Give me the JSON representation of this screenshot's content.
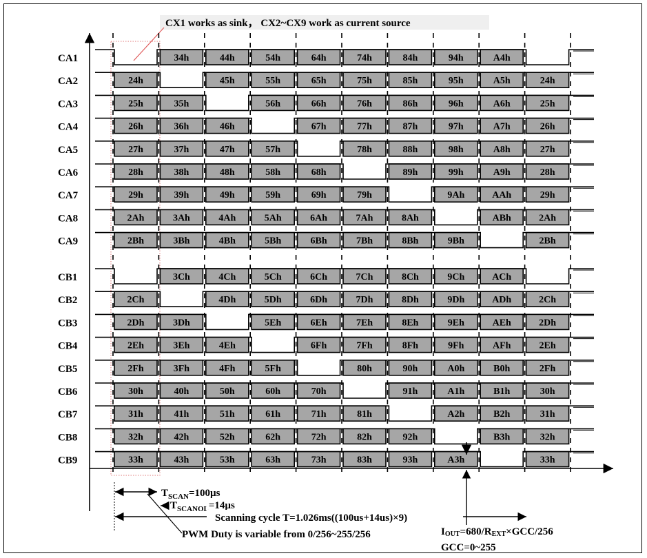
{
  "title": "CX1 works as sink， CX2~CX9 work as current source",
  "rows": [
    {
      "label": "CA1",
      "cells": [
        null,
        "34h",
        "44h",
        "54h",
        "64h",
        "74h",
        "84h",
        "94h",
        "A4h",
        null
      ]
    },
    {
      "label": "CA2",
      "cells": [
        "24h",
        null,
        "45h",
        "55h",
        "65h",
        "75h",
        "85h",
        "95h",
        "A5h",
        "24h"
      ]
    },
    {
      "label": "CA3",
      "cells": [
        "25h",
        "35h",
        null,
        "56h",
        "66h",
        "76h",
        "86h",
        "96h",
        "A6h",
        "25h"
      ]
    },
    {
      "label": "CA4",
      "cells": [
        "26h",
        "36h",
        "46h",
        null,
        "67h",
        "77h",
        "87h",
        "97h",
        "A7h",
        "26h"
      ]
    },
    {
      "label": "CA5",
      "cells": [
        "27h",
        "37h",
        "47h",
        "57h",
        null,
        "78h",
        "88h",
        "98h",
        "A8h",
        "27h"
      ]
    },
    {
      "label": "CA6",
      "cells": [
        "28h",
        "38h",
        "48h",
        "58h",
        "68h",
        null,
        "89h",
        "99h",
        "A9h",
        "28h"
      ]
    },
    {
      "label": "CA7",
      "cells": [
        "29h",
        "39h",
        "49h",
        "59h",
        "69h",
        "79h",
        null,
        "9Ah",
        "AAh",
        "29h"
      ]
    },
    {
      "label": "CA8",
      "cells": [
        "2Ah",
        "3Ah",
        "4Ah",
        "5Ah",
        "6Ah",
        "7Ah",
        "8Ah",
        null,
        "ABh",
        "2Ah"
      ]
    },
    {
      "label": "CA9",
      "cells": [
        "2Bh",
        "3Bh",
        "4Bh",
        "5Bh",
        "6Bh",
        "7Bh",
        "8Bh",
        "9Bh",
        null,
        "2Bh"
      ]
    },
    {
      "label": "CB1",
      "cells": [
        null,
        "3Ch",
        "4Ch",
        "5Ch",
        "6Ch",
        "7Ch",
        "8Ch",
        "9Ch",
        "ACh",
        null
      ]
    },
    {
      "label": "CB2",
      "cells": [
        "2Ch",
        null,
        "4Dh",
        "5Dh",
        "6Dh",
        "7Dh",
        "8Dh",
        "9Dh",
        "ADh",
        "2Ch"
      ]
    },
    {
      "label": "CB3",
      "cells": [
        "2Dh",
        "3Dh",
        null,
        "5Eh",
        "6Eh",
        "7Eh",
        "8Eh",
        "9Eh",
        "AEh",
        "2Dh"
      ]
    },
    {
      "label": "CB4",
      "cells": [
        "2Eh",
        "3Eh",
        "4Eh",
        null,
        "6Fh",
        "7Fh",
        "8Fh",
        "9Fh",
        "AFh",
        "2Eh"
      ]
    },
    {
      "label": "CB5",
      "cells": [
        "2Fh",
        "3Fh",
        "4Fh",
        "5Fh",
        null,
        "80h",
        "90h",
        "A0h",
        "B0h",
        "2Fh"
      ]
    },
    {
      "label": "CB6",
      "cells": [
        "30h",
        "40h",
        "50h",
        "60h",
        "70h",
        null,
        "91h",
        "A1h",
        "B1h",
        "30h"
      ]
    },
    {
      "label": "CB7",
      "cells": [
        "31h",
        "41h",
        "51h",
        "61h",
        "71h",
        "81h",
        null,
        "A2h",
        "B2h",
        "31h"
      ]
    },
    {
      "label": "CB8",
      "cells": [
        "32h",
        "42h",
        "52h",
        "62h",
        "72h",
        "82h",
        "92h",
        null,
        "B3h",
        "32h"
      ]
    },
    {
      "label": "CB9",
      "cells": [
        "33h",
        "43h",
        "53h",
        "63h",
        "73h",
        "83h",
        "93h",
        "A3h",
        null,
        "33h"
      ]
    }
  ],
  "annotations": {
    "tscan_main": "T",
    "tscan_sub": "SCAN",
    "tscan_value": "=100µs",
    "tscanol_main": "T",
    "tscanol_sub": "SCANOL",
    "tscanol_value": "=14µs",
    "cycle": "Scanning cycle T=1.026ms((100us+14us)×9)",
    "pwm": "PWM Duty is variable from 0/256~255/256",
    "iout_main": "I",
    "iout_sub": "OUT",
    "iout_mid": "=680/R",
    "iout_sub2": "EXT",
    "iout_tail": "×GCC/256",
    "gcc": "GCC=0~255"
  },
  "colors": {
    "cell_fill": "#a6a6a6",
    "title_bg": "#efefef",
    "pink": "#e05a5a"
  }
}
